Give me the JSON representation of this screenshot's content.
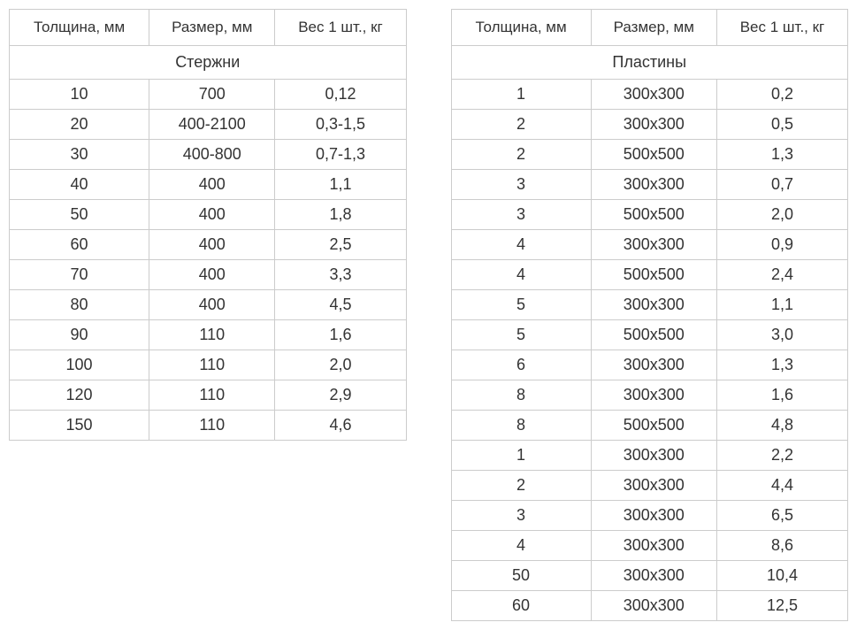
{
  "left_table": {
    "headers": [
      "Толщина, мм",
      "Размер, мм",
      "Вес 1 шт., кг"
    ],
    "section_title": "Стержни",
    "rows": [
      [
        "10",
        "700",
        "0,12"
      ],
      [
        "20",
        "400-2100",
        "0,3-1,5"
      ],
      [
        "30",
        "400-800",
        "0,7-1,3"
      ],
      [
        "40",
        "400",
        "1,1"
      ],
      [
        "50",
        "400",
        "1,8"
      ],
      [
        "60",
        "400",
        "2,5"
      ],
      [
        "70",
        "400",
        "3,3"
      ],
      [
        "80",
        "400",
        "4,5"
      ],
      [
        "90",
        "110",
        "1,6"
      ],
      [
        "100",
        "110",
        "2,0"
      ],
      [
        "120",
        "110",
        "2,9"
      ],
      [
        "150",
        "110",
        "4,6"
      ]
    ]
  },
  "right_table": {
    "headers": [
      "Толщина, мм",
      "Размер, мм",
      "Вес 1 шт., кг"
    ],
    "section_title": "Пластины",
    "rows": [
      [
        "1",
        "300х300",
        "0,2"
      ],
      [
        "2",
        "300х300",
        "0,5"
      ],
      [
        "2",
        "500х500",
        "1,3"
      ],
      [
        "3",
        "300х300",
        "0,7"
      ],
      [
        "3",
        "500х500",
        "2,0"
      ],
      [
        "4",
        "300х300",
        "0,9"
      ],
      [
        "4",
        "500х500",
        "2,4"
      ],
      [
        "5",
        "300х300",
        "1,1"
      ],
      [
        "5",
        "500х500",
        "3,0"
      ],
      [
        "6",
        "300х300",
        "1,3"
      ],
      [
        "8",
        "300х300",
        "1,6"
      ],
      [
        "8",
        "500х500",
        "4,8"
      ],
      [
        "1",
        "300х300",
        "2,2"
      ],
      [
        "2",
        "300х300",
        "4,4"
      ],
      [
        "3",
        "300х300",
        "6,5"
      ],
      [
        "4",
        "300х300",
        "8,6"
      ],
      [
        "50",
        "300х300",
        "10,4"
      ],
      [
        "60",
        "300х300",
        "12,5"
      ]
    ]
  },
  "styling": {
    "font_family": "Arial, Helvetica, sans-serif",
    "text_color": "#333333",
    "border_color": "#cccccc",
    "background_color": "#ffffff",
    "header_fontsize": 17,
    "cell_fontsize": 18,
    "column_widths_pct": [
      33,
      34,
      33
    ]
  }
}
